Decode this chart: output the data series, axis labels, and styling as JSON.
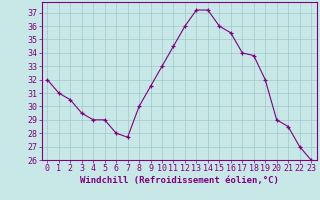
{
  "x": [
    0,
    1,
    2,
    3,
    4,
    5,
    6,
    7,
    8,
    9,
    10,
    11,
    12,
    13,
    14,
    15,
    16,
    17,
    18,
    19,
    20,
    21,
    22,
    23
  ],
  "y": [
    32,
    31,
    30.5,
    29.5,
    29,
    29,
    28,
    27.7,
    30,
    31.5,
    33,
    34.5,
    36,
    37.2,
    37.2,
    36,
    35.5,
    34,
    33.8,
    32,
    29,
    28.5,
    27,
    26
  ],
  "line_color": "#800080",
  "marker_color": "#800080",
  "bg_color": "#c8e8e8",
  "grid_color": "#a0c8c8",
  "xlabel": "Windchill (Refroidissement éolien,°C)",
  "ylim_min": 26,
  "ylim_max": 37.8,
  "xlim_min": -0.5,
  "xlim_max": 23.5,
  "yticks": [
    26,
    27,
    28,
    29,
    30,
    31,
    32,
    33,
    34,
    35,
    36,
    37
  ],
  "xticks": [
    0,
    1,
    2,
    3,
    4,
    5,
    6,
    7,
    8,
    9,
    10,
    11,
    12,
    13,
    14,
    15,
    16,
    17,
    18,
    19,
    20,
    21,
    22,
    23
  ],
  "tick_color": "#800080",
  "label_color": "#800080",
  "spine_color": "#800080",
  "fontsize_xlabel": 6.5,
  "fontsize_ticks": 6
}
